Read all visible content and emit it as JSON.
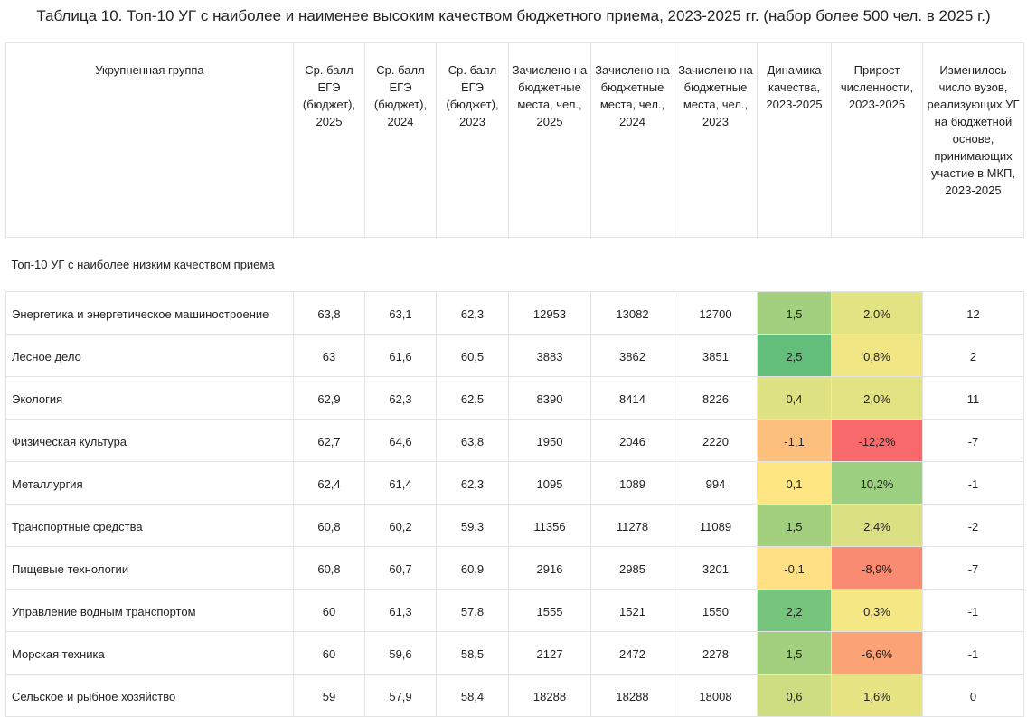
{
  "title": "Таблица 10. Топ-10 УГ с наиболее и наименее высоким качеством бюджетного приема, 2023-2025 гг. (набор  более 500 чел. в 2025 г.)",
  "columns": [
    "Укрупненная группа",
    "Ср. балл ЕГЭ (бюджет), 2025",
    "Ср. балл ЕГЭ (бюджет), 2024",
    "Ср. балл ЕГЭ (бюджет), 2023",
    "Зачислено на бюджетные места, чел., 2025",
    "Зачислено на бюджетные места, чел., 2024",
    "Зачислено на бюджетные места, чел., 2023",
    "Динамика качества, 2023-2025",
    "Прирост численности, 2023-2025",
    "Изменилось число вузов, реализующих УГ на бюджетной основе, принимающих участие в МКП, 2023-2025"
  ],
  "section_label": "Топ-10 УГ с наиболее низким качеством приема",
  "rows": [
    {
      "cells": [
        "Энергетика и энергетическое машиностроение",
        "63,8",
        "63,1",
        "62,3",
        "12953",
        "13082",
        "12700",
        "1,5",
        "2,0%",
        "12"
      ],
      "colors": [
        "#a3d07f",
        "#e2e383"
      ]
    },
    {
      "cells": [
        "Лесное дело",
        "63",
        "61,6",
        "60,5",
        "3883",
        "3862",
        "3851",
        "2,5",
        "0,8%",
        "2"
      ],
      "colors": [
        "#63be7b",
        "#f0e784"
      ]
    },
    {
      "cells": [
        "Экология",
        "62,9",
        "62,3",
        "62,5",
        "8390",
        "8414",
        "8226",
        "0,4",
        "2,0%",
        "11"
      ],
      "colors": [
        "#dfe283",
        "#e2e383"
      ]
    },
    {
      "cells": [
        "Физическая культура",
        "62,7",
        "64,6",
        "63,8",
        "1950",
        "2046",
        "2220",
        "-1,1",
        "-12,2%",
        "-7"
      ],
      "colors": [
        "#fdc07c",
        "#f8696b"
      ]
    },
    {
      "cells": [
        "Металлургия",
        "62,4",
        "61,4",
        "62,3",
        "1095",
        "1089",
        "994",
        "0,1",
        "10,2%",
        "-1"
      ],
      "colors": [
        "#fee683",
        "#9ccf7f"
      ]
    },
    {
      "cells": [
        "Транспортные средства",
        "60,8",
        "60,2",
        "59,3",
        "11356",
        "11278",
        "11089",
        "1,5",
        "2,4%",
        "-2"
      ],
      "colors": [
        "#a3d07f",
        "#dbe182"
      ]
    },
    {
      "cells": [
        "Пищевые технологии",
        "60,8",
        "60,7",
        "60,9",
        "2916",
        "2985",
        "3201",
        "-0,1",
        "-8,9%",
        "-7"
      ],
      "colors": [
        "#ffe084",
        "#f98b72"
      ]
    },
    {
      "cells": [
        "Управление водным транспортом",
        "60",
        "61,3",
        "57,8",
        "1555",
        "1521",
        "1550",
        "2,2",
        "0,3%",
        "-1"
      ],
      "colors": [
        "#77c47d",
        "#f5e884"
      ]
    },
    {
      "cells": [
        "Морская техника",
        "60",
        "59,6",
        "58,5",
        "2127",
        "2472",
        "2278",
        "1,5",
        "-6,6%",
        "-1"
      ],
      "colors": [
        "#a3d07f",
        "#fba276"
      ]
    },
    {
      "cells": [
        "Сельское и рыбное хозяйство",
        "59",
        "57,9",
        "58,4",
        "18288",
        "18288",
        "18008",
        "0,6",
        "1,6%",
        "0"
      ],
      "colors": [
        "#cfdd82",
        "#e6e483"
      ]
    }
  ]
}
